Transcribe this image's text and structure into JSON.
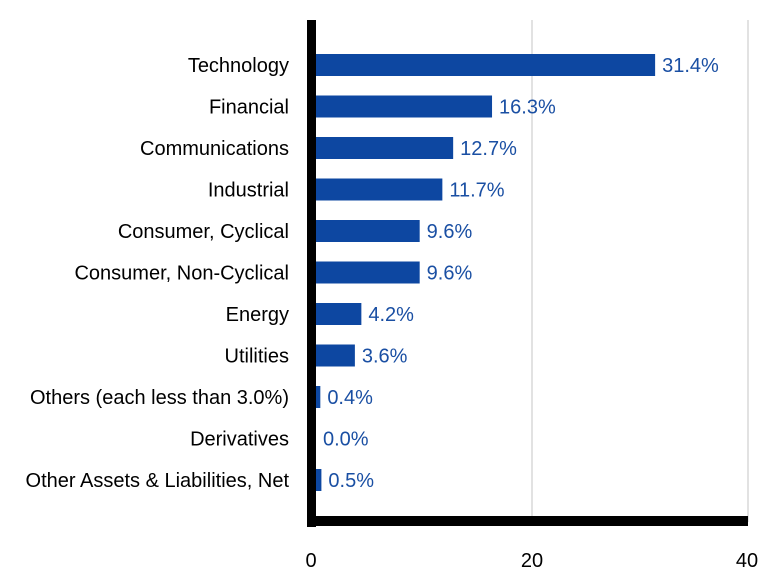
{
  "chart_data": {
    "type": "bar",
    "orientation": "horizontal",
    "categories": [
      "Technology",
      "Financial",
      "Communications",
      "Industrial",
      "Consumer, Cyclical",
      "Consumer, Non-Cyclical",
      "Energy",
      "Utilities",
      "Others (each less than 3.0%)",
      "Derivatives",
      "Other Assets & Liabilities, Net"
    ],
    "values": [
      31.4,
      16.3,
      12.7,
      11.7,
      9.6,
      9.6,
      4.2,
      3.6,
      0.4,
      0.0,
      0.5
    ],
    "value_labels": [
      "31.4%",
      "16.3%",
      "12.7%",
      "11.7%",
      "9.6%",
      "9.6%",
      "4.2%",
      "3.6%",
      "0.4%",
      "0.0%",
      "0.5%"
    ],
    "xlim": [
      0,
      40
    ],
    "xticks": [
      0,
      20,
      40
    ],
    "grid": true,
    "bar_color": "#0d47a1",
    "label_color": "#1a4fa3",
    "axis_color": "#000000",
    "grid_color": "#d9d9d9"
  }
}
